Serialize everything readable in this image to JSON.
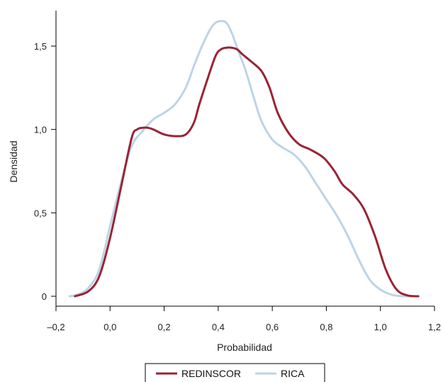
{
  "chart_data": {
    "type": "line",
    "title": "",
    "xlabel": "Probabilidad",
    "ylabel": "Densidad",
    "xlim": [
      -0.2,
      1.2
    ],
    "ylim": [
      0,
      1.7
    ],
    "grid": false,
    "legend_position": "bottom",
    "x_ticks": [
      {
        "value": -0.2,
        "label": "–0,2"
      },
      {
        "value": 0.0,
        "label": "0,0"
      },
      {
        "value": 0.2,
        "label": "0,2"
      },
      {
        "value": 0.4,
        "label": "0,4"
      },
      {
        "value": 0.6,
        "label": "0,6"
      },
      {
        "value": 0.8,
        "label": "0,8"
      },
      {
        "value": 1.0,
        "label": "1,0"
      },
      {
        "value": 1.2,
        "label": "1,2"
      }
    ],
    "y_ticks": [
      {
        "value": 0.0,
        "label": "0"
      },
      {
        "value": 0.5,
        "label": "0,5"
      },
      {
        "value": 1.0,
        "label": "1,0"
      },
      {
        "value": 1.5,
        "label": "1,5"
      }
    ],
    "series": [
      {
        "name": "REDINSCOR",
        "color": "#9b2335",
        "x": [
          -0.13,
          -0.08,
          -0.04,
          0.0,
          0.04,
          0.08,
          0.1,
          0.12,
          0.14,
          0.16,
          0.2,
          0.24,
          0.28,
          0.31,
          0.33,
          0.36,
          0.39,
          0.41,
          0.43,
          0.45,
          0.47,
          0.49,
          0.52,
          0.56,
          0.59,
          0.62,
          0.66,
          0.7,
          0.74,
          0.79,
          0.83,
          0.86,
          0.9,
          0.94,
          0.98,
          1.02,
          1.06,
          1.1,
          1.14
        ],
        "y": [
          0.0,
          0.03,
          0.12,
          0.35,
          0.65,
          0.95,
          1.0,
          1.01,
          1.01,
          1.0,
          0.97,
          0.96,
          0.97,
          1.04,
          1.15,
          1.3,
          1.44,
          1.48,
          1.49,
          1.49,
          1.48,
          1.45,
          1.41,
          1.35,
          1.25,
          1.1,
          0.98,
          0.91,
          0.88,
          0.83,
          0.75,
          0.67,
          0.61,
          0.52,
          0.36,
          0.16,
          0.04,
          0.005,
          0.0
        ]
      },
      {
        "name": "RICA",
        "color": "#bdd4e6",
        "x": [
          -0.15,
          -0.12,
          -0.08,
          -0.04,
          0.0,
          0.04,
          0.08,
          0.12,
          0.16,
          0.2,
          0.24,
          0.28,
          0.31,
          0.34,
          0.37,
          0.39,
          0.41,
          0.43,
          0.45,
          0.47,
          0.5,
          0.53,
          0.56,
          0.6,
          0.64,
          0.68,
          0.72,
          0.76,
          0.8,
          0.84,
          0.88,
          0.92,
          0.96,
          1.0,
          1.04,
          1.08,
          1.12
        ],
        "y": [
          0.0,
          0.01,
          0.05,
          0.16,
          0.42,
          0.68,
          0.9,
          0.99,
          1.06,
          1.1,
          1.15,
          1.25,
          1.38,
          1.5,
          1.6,
          1.64,
          1.65,
          1.64,
          1.58,
          1.49,
          1.36,
          1.2,
          1.05,
          0.94,
          0.89,
          0.85,
          0.78,
          0.68,
          0.58,
          0.48,
          0.36,
          0.22,
          0.1,
          0.04,
          0.01,
          0.0,
          0.0
        ]
      }
    ]
  }
}
